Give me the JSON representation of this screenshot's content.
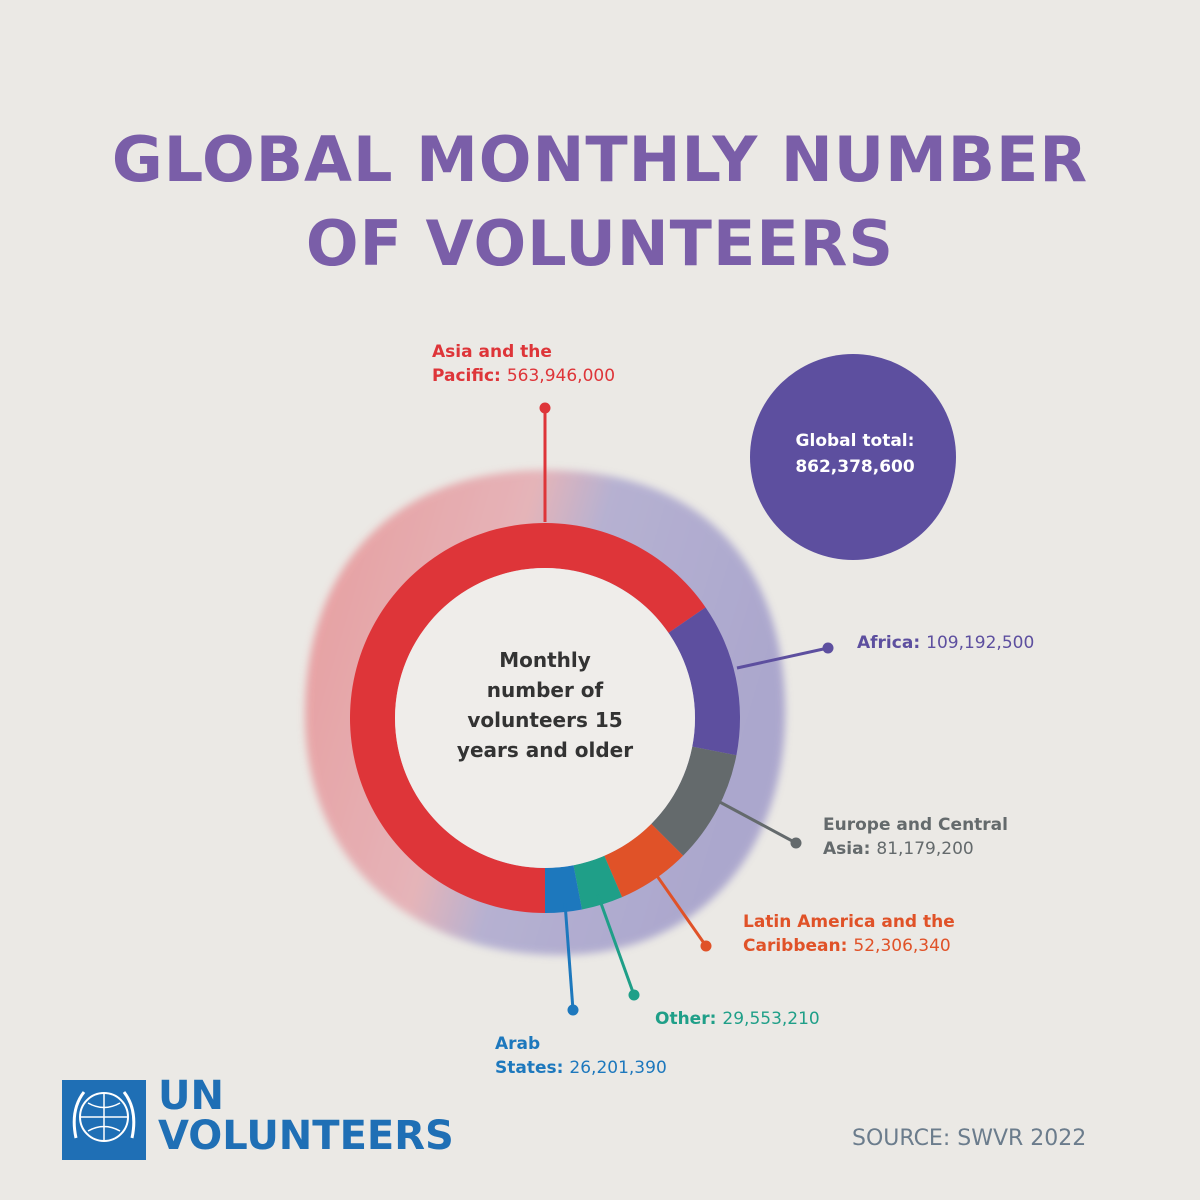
{
  "chart_data": {
    "type": "donut",
    "title": "GLOBAL MONTHLY NUMBER OF VOLUNTEERS",
    "center_label": "Monthly number of volunteers 15 years and older",
    "categories": [
      "Asia and the Pacific:",
      "Africa:",
      "Europe and Central Asia:",
      "Latin America and the Caribbean:",
      "Other:",
      "Arab States:"
    ],
    "values": [
      563946000,
      109192500,
      81179200,
      52306340,
      29553210,
      26201390
    ],
    "value_labels": [
      "563,946,000",
      "109,192,500",
      "81,179,200",
      "52,306,340",
      "29,553,210",
      "26,201,390"
    ],
    "colors": [
      "#de3539",
      "#5d4f9f",
      "#646a6c",
      "#e05228",
      "#1f9f88",
      "#1d78bd"
    ],
    "total": {
      "label": "Global total:",
      "value": 862378600,
      "value_label": "862,378,600"
    }
  },
  "logo": [
    "UN",
    "VOLUNTEERS"
  ],
  "source": "SOURCE: SWVR 2022"
}
